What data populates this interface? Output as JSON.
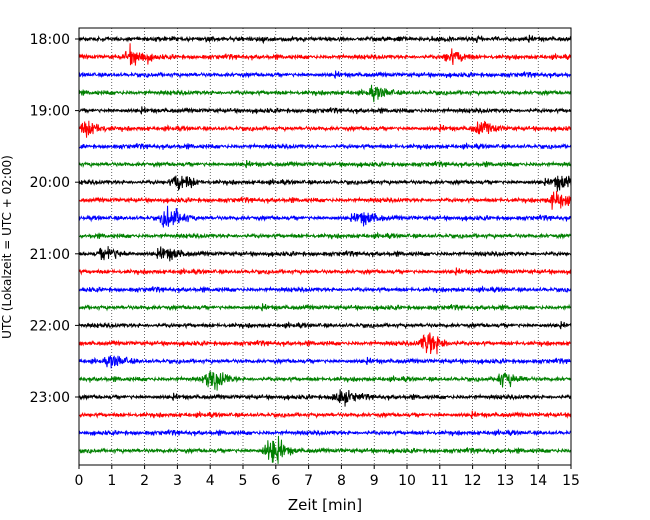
{
  "chart_data": {
    "type": "line",
    "title": "",
    "xlabel": "Zeit  [min]",
    "ylabel": "UTC (Lokalzeit = UTC + 02:00)",
    "xlim": [
      0,
      15
    ],
    "x_ticks": [
      "0",
      "1",
      "2",
      "3",
      "4",
      "5",
      "6",
      "7",
      "8",
      "9",
      "10",
      "11",
      "12",
      "13",
      "14",
      "15"
    ],
    "y_ticks": [
      "18:00",
      "19:00",
      "20:00",
      "21:00",
      "22:00",
      "23:00"
    ],
    "grid": "vertical-dotted",
    "trace_colors": [
      "#000000",
      "#ff0000",
      "#0000ff",
      "#008000"
    ],
    "trace_start_times": [
      "18:00",
      "18:15",
      "18:30",
      "18:45",
      "19:00",
      "19:15",
      "19:30",
      "19:45",
      "20:00",
      "20:15",
      "20:30",
      "20:45",
      "21:00",
      "21:15",
      "21:30",
      "21:45",
      "22:00",
      "22:15",
      "22:30",
      "22:45",
      "23:00",
      "23:15",
      "23:30",
      "23:45"
    ],
    "events": [
      {
        "trace": 1,
        "minute": 1.6,
        "amplitude": 2.2
      },
      {
        "trace": 1,
        "minute": 11.3,
        "amplitude": 1.4
      },
      {
        "trace": 3,
        "minute": 9.0,
        "amplitude": 1.2
      },
      {
        "trace": 5,
        "minute": 0.2,
        "amplitude": 1.6
      },
      {
        "trace": 5,
        "minute": 12.2,
        "amplitude": 1.4
      },
      {
        "trace": 8,
        "minute": 3.0,
        "amplitude": 1.8
      },
      {
        "trace": 8,
        "minute": 14.6,
        "amplitude": 1.6
      },
      {
        "trace": 9,
        "minute": 14.5,
        "amplitude": 1.8
      },
      {
        "trace": 10,
        "minute": 2.7,
        "amplitude": 2.6
      },
      {
        "trace": 10,
        "minute": 8.6,
        "amplitude": 1.4
      },
      {
        "trace": 12,
        "minute": 0.8,
        "amplitude": 1.6
      },
      {
        "trace": 12,
        "minute": 2.6,
        "amplitude": 1.3
      },
      {
        "trace": 17,
        "minute": 10.6,
        "amplitude": 2.8
      },
      {
        "trace": 18,
        "minute": 1.0,
        "amplitude": 1.2
      },
      {
        "trace": 19,
        "minute": 4.0,
        "amplitude": 2.4
      },
      {
        "trace": 19,
        "minute": 12.9,
        "amplitude": 1.6
      },
      {
        "trace": 20,
        "minute": 7.9,
        "amplitude": 1.6
      },
      {
        "trace": 23,
        "minute": 5.8,
        "amplitude": 3.0
      }
    ]
  }
}
